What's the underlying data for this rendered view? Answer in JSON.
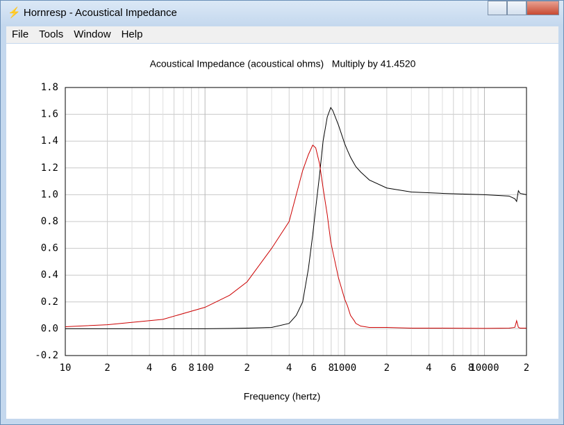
{
  "window": {
    "title": "Hornresp - Acoustical Impedance",
    "menu": [
      "File",
      "Tools",
      "Window",
      "Help"
    ]
  },
  "chart_data": {
    "type": "line",
    "title": "Acoustical Impedance (acoustical ohms)   Multiply by 41.4520",
    "x_label": "Frequency (hertz)",
    "x": [
      10,
      20,
      50,
      100,
      150,
      200,
      300,
      400,
      450,
      500,
      550,
      590,
      620,
      661,
      700,
      750,
      794,
      820,
      902,
      1000,
      1047,
      1100,
      1170,
      1200,
      1300,
      1500,
      2000,
      3000,
      5000,
      10000,
      15000,
      16500,
      17000,
      17500,
      18000,
      20000
    ],
    "series": [
      {
        "color": "#000000",
        "values": [
          0,
          0,
          0,
          0,
          0.002,
          0.005,
          0.01,
          0.04,
          0.1,
          0.2,
          0.45,
          0.7,
          0.9,
          1.15,
          1.4,
          1.58,
          1.65,
          1.63,
          1.52,
          1.38,
          1.33,
          1.28,
          1.23,
          1.21,
          1.17,
          1.11,
          1.05,
          1.02,
          1.01,
          1.0,
          0.99,
          0.97,
          0.95,
          1.03,
          1.01,
          1.0
        ]
      },
      {
        "color": "#cc0000",
        "values": [
          0.015,
          0.03,
          0.07,
          0.16,
          0.25,
          0.35,
          0.6,
          0.8,
          1.0,
          1.18,
          1.3,
          1.37,
          1.35,
          1.23,
          1.05,
          0.85,
          0.65,
          0.58,
          0.38,
          0.22,
          0.17,
          0.1,
          0.06,
          0.04,
          0.02,
          0.01,
          0.01,
          0.005,
          0.005,
          0.003,
          0.005,
          0.01,
          0.06,
          0.01,
          0.005,
          0.005
        ]
      }
    ],
    "x_log": true,
    "xlim": [
      10,
      20000
    ],
    "xticks": [
      10,
      {
        "value": 20,
        "label": "2"
      },
      {
        "value": 40,
        "label": "4"
      },
      {
        "value": 60,
        "label": "6"
      },
      {
        "value": 80,
        "label": "8"
      },
      100,
      {
        "value": 200,
        "label": "2"
      },
      {
        "value": 400,
        "label": "4"
      },
      {
        "value": 600,
        "label": "6"
      },
      {
        "value": 800,
        "label": "8"
      },
      1000,
      {
        "value": 2000,
        "label": "2"
      },
      {
        "value": 4000,
        "label": "4"
      },
      {
        "value": 6000,
        "label": "6"
      },
      {
        "value": 8000,
        "label": "8"
      },
      10000,
      {
        "value": 20000,
        "label": "2"
      }
    ],
    "x_minor_grid": [
      30,
      50,
      70,
      90,
      300,
      500,
      700,
      900,
      3000,
      5000,
      7000,
      9000
    ],
    "ylim": [
      -0.2,
      1.8
    ],
    "yticks": [
      -0.2,
      {
        "value": 0,
        "label": "0.0"
      },
      0.2,
      0.4,
      0.6,
      0.8,
      {
        "value": 1,
        "label": "1.0"
      },
      1.2,
      1.4,
      1.6,
      1.8
    ],
    "grid": true
  }
}
